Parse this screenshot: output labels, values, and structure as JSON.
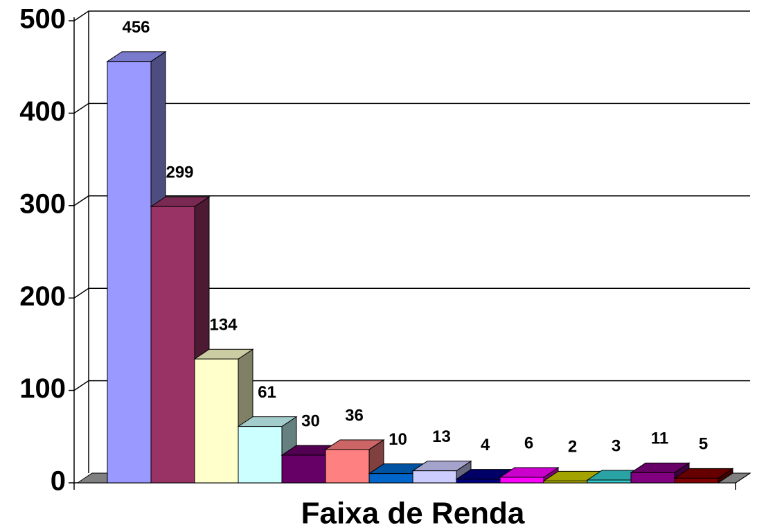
{
  "chart_data": {
    "type": "bar3d",
    "x_label": "Faixa de Renda",
    "categories": [
      null,
      null,
      null,
      null,
      null,
      null,
      null,
      null,
      null,
      null,
      null,
      null,
      null,
      null
    ],
    "values": [
      456,
      299,
      134,
      61,
      30,
      36,
      10,
      13,
      4,
      6,
      2,
      3,
      11,
      5
    ],
    "colors": [
      "#9999ff",
      "#993366",
      "#ffffcc",
      "#ccffff",
      "#660066",
      "#ff8080",
      "#0066cc",
      "#ccccff",
      "#000080",
      "#ff00ff",
      "#cccc00",
      "#33cccc",
      "#800080",
      "#800000"
    ],
    "ylim": [
      0,
      500
    ],
    "yticks": [
      0,
      100,
      200,
      300,
      400,
      500
    ],
    "grid": true
  }
}
